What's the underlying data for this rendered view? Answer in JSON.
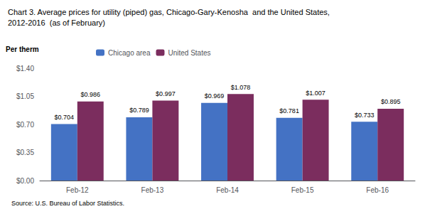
{
  "chart_data": {
    "type": "bar",
    "title": "Chart 3. Average prices for utility (piped) gas, Chicago-Gary-Kenosha  and the United States,\n2012-2016  (as of February)",
    "ylabel": "Per therm",
    "annotations": [
      "Source: U.S. Bureau of Labor Statistics."
    ],
    "categories": [
      "Feb-12",
      "Feb-13",
      "Feb-14",
      "Feb-15",
      "Feb-16"
    ],
    "series": [
      {
        "name": "Chicago area",
        "color": "#4472C4",
        "values": [
          0.704,
          0.789,
          0.969,
          0.781,
          0.733
        ],
        "value_labels": [
          "$0.704",
          "$0.789",
          "$0.969",
          "$0.781",
          "$0.733"
        ]
      },
      {
        "name": "United States",
        "color": "#7B2D5E",
        "values": [
          0.986,
          0.997,
          1.078,
          1.007,
          0.895
        ],
        "value_labels": [
          "$0.986",
          "$0.997",
          "$1.078",
          "$1.007",
          "$0.895"
        ]
      }
    ],
    "ylim": [
      0,
      1.4
    ],
    "yticks": [
      {
        "value": 0.0,
        "label": "$0.00"
      },
      {
        "value": 0.35,
        "label": "$0.35"
      },
      {
        "value": 0.7,
        "label": "$0.70"
      },
      {
        "value": 1.05,
        "label": "$1.05"
      },
      {
        "value": 1.4,
        "label": "$1.40"
      }
    ],
    "grid": false,
    "legend": "top",
    "data_labels": true
  }
}
